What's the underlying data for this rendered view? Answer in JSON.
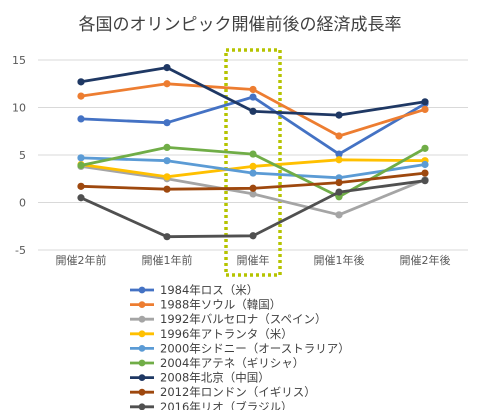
{
  "chart_data": {
    "type": "line",
    "title": "各国のオリンピック開催前後の経済成長率",
    "xlabel": "",
    "ylabel": "",
    "categories": [
      "開催2年前",
      "開催1年前",
      "開催年",
      "開催1年後",
      "開催2年後"
    ],
    "ylim": [
      -5,
      15
    ],
    "yticks": [
      -5,
      0,
      5,
      10,
      15
    ],
    "grid": true,
    "legend_position": "bottom",
    "highlight": {
      "category": "開催年",
      "style": "dotted box",
      "color": "#b5c400"
    },
    "series": [
      {
        "name": "1984年ロス（米）",
        "color": "#4472c4",
        "values": [
          8.8,
          8.4,
          11.1,
          5.1,
          10.4
        ]
      },
      {
        "name": "1988年ソウル（韓国）",
        "color": "#ed7d31",
        "values": [
          11.2,
          12.5,
          11.9,
          7.0,
          9.8
        ]
      },
      {
        "name": "1992年バルセロナ（スペイン）",
        "color": "#a5a5a5",
        "values": [
          3.8,
          2.5,
          0.9,
          -1.3,
          2.4
        ]
      },
      {
        "name": "1996年アトランタ（米）",
        "color": "#ffc000",
        "values": [
          4.0,
          2.7,
          3.8,
          4.5,
          4.4
        ]
      },
      {
        "name": "2000年シドニー（オーストラリア）",
        "color": "#5b9bd5",
        "values": [
          4.7,
          4.4,
          3.1,
          2.6,
          4.0
        ]
      },
      {
        "name": "2004年アテネ（ギリシャ）",
        "color": "#70ad47",
        "values": [
          3.9,
          5.8,
          5.1,
          0.6,
          5.7
        ]
      },
      {
        "name": "2008年北京（中国）",
        "color": "#1f3864",
        "values": [
          12.7,
          14.2,
          9.6,
          9.2,
          10.6
        ]
      },
      {
        "name": "2012年ロンドン（イギリス）",
        "color": "#9e480e",
        "values": [
          1.7,
          1.4,
          1.5,
          2.1,
          3.1
        ]
      },
      {
        "name": "2016年リオ（ブラジル）",
        "color": "#505050",
        "values": [
          0.5,
          -3.6,
          -3.5,
          1.1,
          2.3
        ]
      }
    ]
  }
}
